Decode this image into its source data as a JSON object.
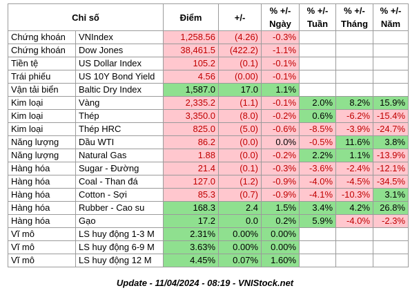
{
  "headers": {
    "chi_so": "Chỉ số",
    "diem": "Điểm",
    "change": "+/-",
    "pct_ngay_top": "% +/-",
    "pct_ngay_bot": "Ngày",
    "pct_tuan_top": "% +/-",
    "pct_tuan_bot": "Tuần",
    "pct_thang_top": "% +/-",
    "pct_thang_bot": "Tháng",
    "pct_nam_top": "% +/-",
    "pct_nam_bot": "Năm"
  },
  "rows": [
    {
      "cat": "Chứng khoán",
      "name": "VNIndex",
      "value": "1,258.56",
      "change": "(4.26)",
      "day": "-0.3%",
      "week": "",
      "month": "",
      "year": ""
    },
    {
      "cat": "Chứng khoán",
      "name": "Dow Jones",
      "value": "38,461.5",
      "change": "(422.2)",
      "day": "-1.1%",
      "week": "",
      "month": "",
      "year": ""
    },
    {
      "cat": "Tiền tệ",
      "name": "US Dollar Index",
      "value": "105.2",
      "change": "(0.1)",
      "day": "-0.1%",
      "week": "",
      "month": "",
      "year": ""
    },
    {
      "cat": "Trái phiếu",
      "name": "US 10Y Bond Yield",
      "value": "4.56",
      "change": "(0.00)",
      "day": "-0.1%",
      "week": "",
      "month": "",
      "year": ""
    },
    {
      "cat": "Vận tải biển",
      "name": "Baltic Dry Index",
      "value": "1,587.0",
      "change": "17.0",
      "day": "1.1%",
      "week": "",
      "month": "",
      "year": ""
    },
    {
      "cat": "Kim loại",
      "name": "Vàng",
      "value": "2,335.2",
      "change": "(1.1)",
      "day": "-0.1%",
      "week": "2.0%",
      "month": "8.2%",
      "year": "15.9%"
    },
    {
      "cat": "Kim loại",
      "name": "Thép",
      "value": "3,350.0",
      "change": "(8.0)",
      "day": "-0.2%",
      "week": "0.6%",
      "month": "-6.2%",
      "year": "-15.4%"
    },
    {
      "cat": "Kim loại",
      "name": "Thép HRC",
      "value": "825.0",
      "change": "(5.0)",
      "day": "-0.6%",
      "week": "-8.5%",
      "month": "-3.9%",
      "year": "-24.7%"
    },
    {
      "cat": "Năng lượng",
      "name": "Dầu WTI",
      "value": "86.2",
      "change": "(0.0)",
      "day": "0.0%",
      "week": "-0.5%",
      "month": "11.6%",
      "year": "3.8%"
    },
    {
      "cat": "Năng lượng",
      "name": "Natural Gas",
      "value": "1.88",
      "change": "(0.0)",
      "day": "-0.2%",
      "week": "2.2%",
      "month": "1.1%",
      "year": "-13.9%"
    },
    {
      "cat": "Hàng hóa",
      "name": "Sugar - Đường",
      "value": "21.4",
      "change": "(0.1)",
      "day": "-0.3%",
      "week": "-3.6%",
      "month": "-2.4%",
      "year": "-12.1%"
    },
    {
      "cat": "Hàng hóa",
      "name": "Coal - Than đá",
      "value": "127.0",
      "change": "(1.2)",
      "day": "-0.9%",
      "week": "-4.0%",
      "month": "-4.5%",
      "year": "-34.5%"
    },
    {
      "cat": "Hàng hóa",
      "name": "Cotton - Sợi",
      "value": "85.3",
      "change": "(0.7)",
      "day": "-0.9%",
      "week": "-4.1%",
      "month": "-10.3%",
      "year": "3.1%"
    },
    {
      "cat": "Hàng hóa",
      "name": "Rubber - Cao su",
      "value": "168.3",
      "change": "2.4",
      "day": "1.5%",
      "week": "3.4%",
      "month": "4.2%",
      "year": "26.8%"
    },
    {
      "cat": "Hàng hóa",
      "name": "Gạo",
      "value": "17.2",
      "change": "0.0",
      "day": "0.2%",
      "week": "5.9%",
      "month": "-4.0%",
      "year": "-2.3%"
    },
    {
      "cat": "Vĩ mô",
      "name": "LS huy động 1-3 M",
      "value": "2.31%",
      "change": "0.00%",
      "day": "0.00%",
      "week": "",
      "month": "",
      "year": ""
    },
    {
      "cat": "Vĩ mô",
      "name": "LS huy động 6-9 M",
      "value": "3.63%",
      "change": "0.00%",
      "day": "0.00%",
      "week": "",
      "month": "",
      "year": ""
    },
    {
      "cat": "Vĩ mô",
      "name": "LS huy động 12 M",
      "value": "4.45%",
      "change": "0.07%",
      "day": "1.60%",
      "week": "",
      "month": "",
      "year": ""
    }
  ],
  "footer": "Update - 11/04/2024 - 08:19 - VNIStock.net",
  "colors": {
    "negative_fill": "#ffc7ce",
    "negative_text": "#c00000",
    "positive_fill": "#8fe08f",
    "positive_fill_light": "#c6efce"
  }
}
